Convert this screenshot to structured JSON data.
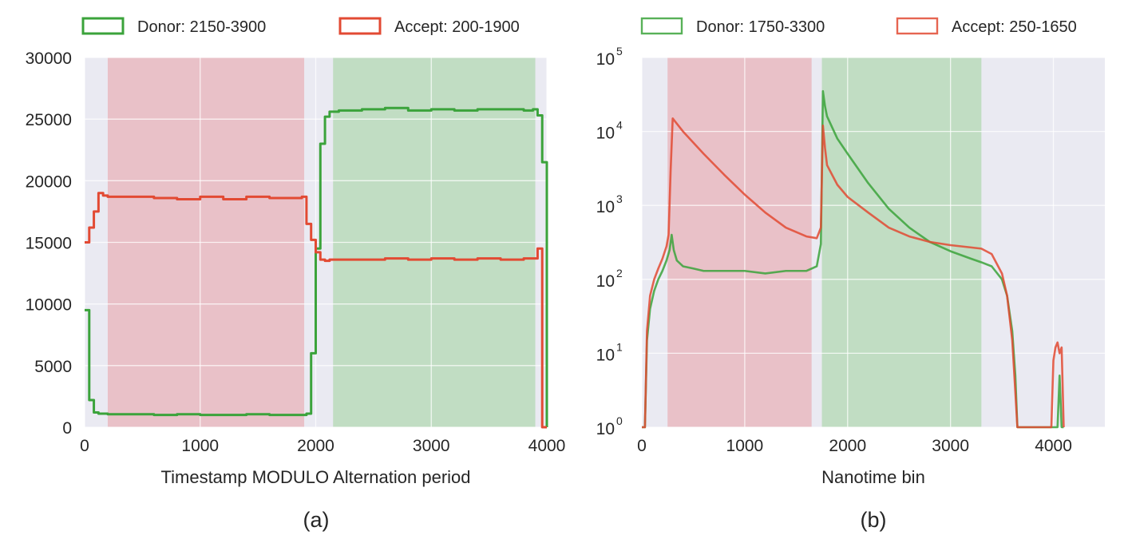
{
  "colors": {
    "plot_bg": "#EAEAF2",
    "grid": "#FFFFFF",
    "donor": "#3BA33B",
    "acceptor": "#E24A33",
    "donor_span": "#B7D9B7",
    "acceptor_span": "#E8B7BD"
  },
  "chart_data": [
    {
      "type": "line",
      "style": "step",
      "caption": "(a)",
      "xlabel": "Timestamp MODULO Alternation period",
      "ylabel": "",
      "xlim": [
        0,
        4000
      ],
      "ylim": [
        0,
        30000
      ],
      "xticks": [
        0,
        1000,
        2000,
        3000,
        4000
      ],
      "xtick_labels": [
        "0",
        "1000",
        "2000",
        "3000",
        "4000"
      ],
      "yticks": [
        0,
        5000,
        10000,
        15000,
        20000,
        25000,
        30000
      ],
      "ytick_labels": [
        "0",
        "5000",
        "10000",
        "15000",
        "20000",
        "25000",
        "30000"
      ],
      "yscale": "linear",
      "grid": true,
      "legend_placement": "top, outside",
      "spans": [
        {
          "series": "acceptor",
          "x": [
            200,
            1900
          ]
        },
        {
          "series": "donor",
          "x": [
            2150,
            3900
          ]
        }
      ],
      "series": [
        {
          "name": "Donor: 2150-3900",
          "key": "donor",
          "x": [
            0,
            40,
            80,
            120,
            200,
            400,
            600,
            800,
            1000,
            1200,
            1400,
            1600,
            1800,
            1880,
            1920,
            1960,
            2000,
            2040,
            2080,
            2120,
            2200,
            2400,
            2600,
            2800,
            3000,
            3200,
            3400,
            3600,
            3800,
            3880,
            3920,
            3960,
            4000
          ],
          "y": [
            9500,
            2200,
            1200,
            1100,
            1050,
            1050,
            1000,
            1050,
            1000,
            1000,
            1050,
            1000,
            1000,
            1000,
            1100,
            6000,
            14500,
            23000,
            25200,
            25600,
            25700,
            25800,
            25900,
            25700,
            25800,
            25700,
            25800,
            25800,
            25700,
            25800,
            25300,
            21500,
            0
          ]
        },
        {
          "name": "Accept: 200-1900",
          "key": "acceptor",
          "x": [
            0,
            40,
            80,
            120,
            160,
            200,
            400,
            600,
            800,
            1000,
            1200,
            1400,
            1600,
            1800,
            1880,
            1920,
            1960,
            2000,
            2040,
            2080,
            2120,
            2200,
            2400,
            2600,
            2800,
            3000,
            3200,
            3400,
            3600,
            3800,
            3880,
            3920,
            3960,
            4000
          ],
          "y": [
            15000,
            16200,
            17500,
            19000,
            18800,
            18700,
            18700,
            18600,
            18500,
            18700,
            18500,
            18700,
            18600,
            18600,
            18700,
            16500,
            15200,
            14200,
            13600,
            13500,
            13600,
            13600,
            13600,
            13700,
            13600,
            13700,
            13600,
            13700,
            13600,
            13700,
            13700,
            14500,
            0,
            0
          ]
        }
      ]
    },
    {
      "type": "line",
      "caption": "(b)",
      "xlabel": "Nanotime bin",
      "ylabel": "",
      "xlim": [
        0,
        4500
      ],
      "ylim": [
        1,
        100000
      ],
      "xticks": [
        0,
        1000,
        2000,
        3000,
        4000
      ],
      "xtick_labels": [
        "0",
        "1000",
        "2000",
        "3000",
        "4000"
      ],
      "yscale": "log",
      "yticks": [
        1,
        10,
        100,
        1000,
        10000,
        100000
      ],
      "ytick_labels": [
        {
          "base": "10",
          "exp": "0"
        },
        {
          "base": "10",
          "exp": "1"
        },
        {
          "base": "10",
          "exp": "2"
        },
        {
          "base": "10",
          "exp": "3"
        },
        {
          "base": "10",
          "exp": "4"
        },
        {
          "base": "10",
          "exp": "5"
        }
      ],
      "grid": true,
      "legend_placement": "top, outside",
      "spans": [
        {
          "series": "acceptor",
          "x": [
            250,
            1650
          ]
        },
        {
          "series": "donor",
          "x": [
            1750,
            3300
          ]
        }
      ],
      "series": [
        {
          "name": "Donor: 1750-3300",
          "key": "donor",
          "x": [
            0,
            30,
            50,
            80,
            120,
            160,
            200,
            240,
            270,
            290,
            310,
            340,
            400,
            500,
            600,
            800,
            1000,
            1200,
            1400,
            1600,
            1700,
            1740,
            1760,
            1780,
            1800,
            1900,
            2000,
            2200,
            2400,
            2600,
            2800,
            3000,
            3200,
            3300,
            3400,
            3500,
            3550,
            3600,
            3630,
            3650,
            3670,
            3700,
            3900,
            3980,
            4000,
            4020,
            4040,
            4060,
            4080,
            4100
          ],
          "y": [
            1,
            1,
            15,
            40,
            70,
            100,
            130,
            180,
            250,
            400,
            250,
            180,
            150,
            140,
            130,
            130,
            130,
            120,
            130,
            130,
            150,
            300,
            35000,
            22000,
            16000,
            8000,
            5000,
            2000,
            900,
            500,
            320,
            240,
            190,
            170,
            150,
            100,
            60,
            20,
            5,
            1,
            1,
            1,
            1,
            1,
            1,
            1,
            1,
            5,
            1,
            1
          ]
        },
        {
          "name": "Accept: 250-1650",
          "key": "acceptor",
          "x": [
            0,
            30,
            50,
            80,
            120,
            160,
            200,
            240,
            260,
            280,
            300,
            400,
            600,
            800,
            1000,
            1200,
            1400,
            1600,
            1700,
            1740,
            1760,
            1780,
            1800,
            1900,
            2000,
            2200,
            2400,
            2600,
            2800,
            3000,
            3200,
            3300,
            3400,
            3500,
            3550,
            3600,
            3630,
            3650,
            3670,
            3700,
            3900,
            3980,
            4000,
            4020,
            4040,
            4060,
            4080,
            4100
          ],
          "y": [
            1,
            1,
            20,
            60,
            100,
            140,
            190,
            280,
            400,
            3000,
            15000,
            10000,
            5000,
            2600,
            1400,
            800,
            500,
            380,
            360,
            500,
            12000,
            6000,
            3500,
            1900,
            1300,
            800,
            500,
            380,
            320,
            290,
            270,
            260,
            220,
            120,
            60,
            15,
            3,
            1,
            1,
            1,
            1,
            1,
            8,
            12,
            14,
            10,
            12,
            1
          ]
        }
      ]
    }
  ]
}
